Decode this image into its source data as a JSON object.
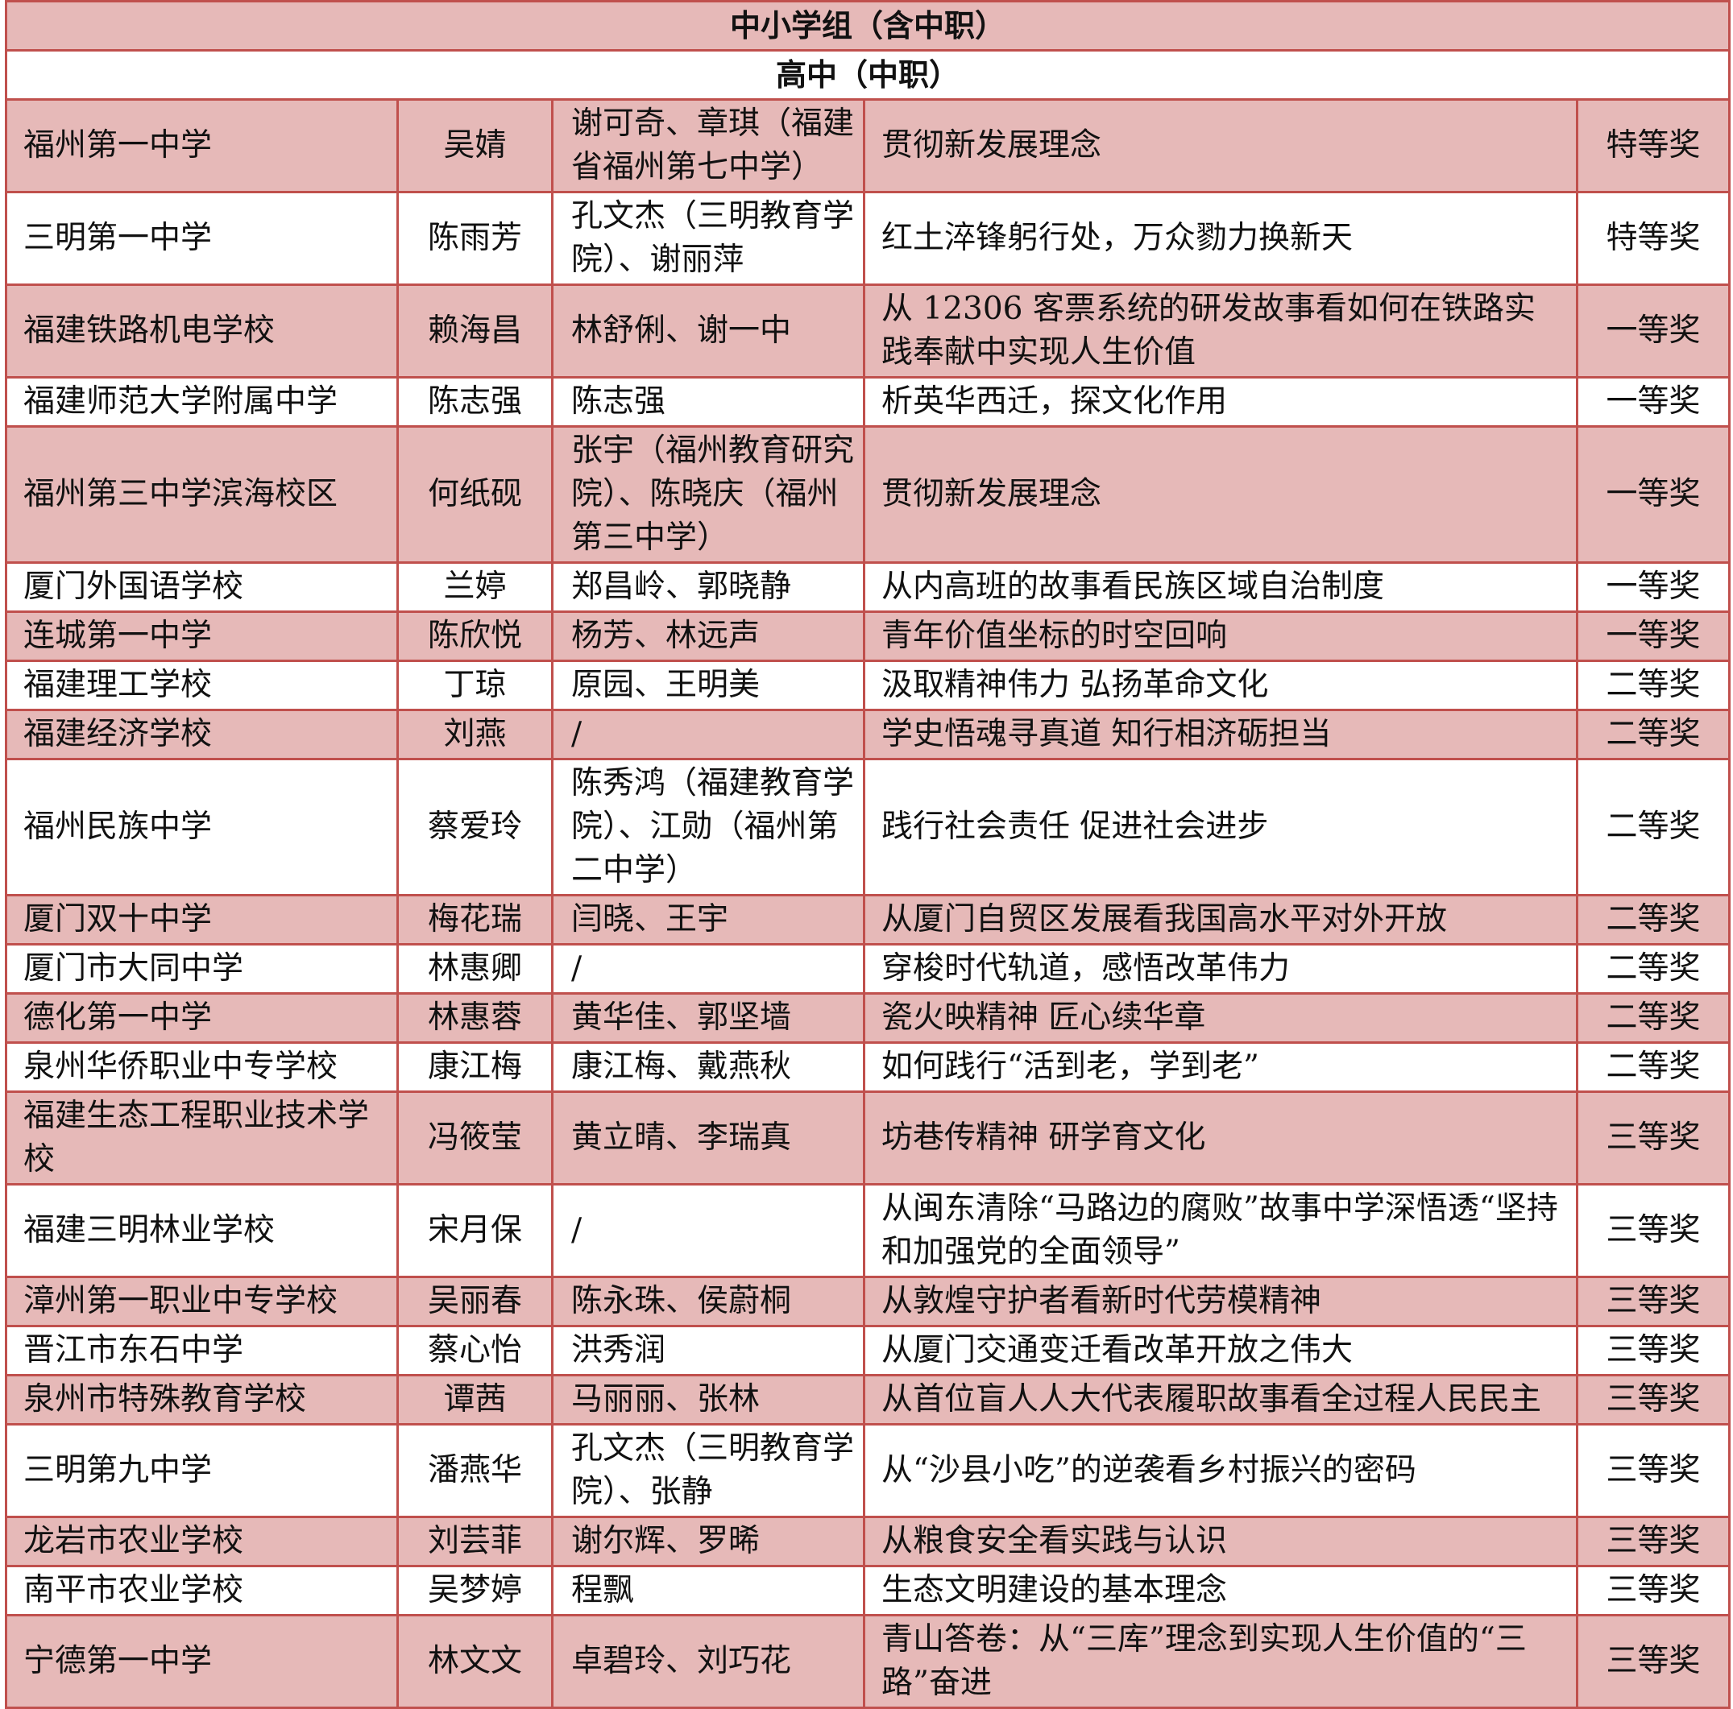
{
  "title": "中小学组（含中职）",
  "subtitle": "高中（中职）",
  "colors": {
    "fill": "#e6b9b8",
    "border": "#c0504d"
  },
  "rows": [
    [
      "福州第一中学",
      "吴婧",
      "谢可奇、章琪（福建省福州第七中学）",
      "贯彻新发展理念",
      "特等奖"
    ],
    [
      "三明第一中学",
      "陈雨芳",
      "孔文杰（三明教育学院）、谢丽萍",
      "红土淬锋躬行处，万众勠力换新天",
      "特等奖"
    ],
    [
      "福建铁路机电学校",
      "赖海昌",
      "林舒俐、谢一中",
      "从 12306 客票系统的研发故事看如何在铁路实践奉献中实现人生价值",
      "一等奖"
    ],
    [
      "福建师范大学附属中学",
      "陈志强",
      "陈志强",
      "析英华西迁，探文化作用",
      "一等奖"
    ],
    [
      "福州第三中学滨海校区",
      "何纸砚",
      "张宇（福州教育研究院）、陈晓庆（福州第三中学）",
      "贯彻新发展理念",
      "一等奖"
    ],
    [
      "厦门外国语学校",
      "兰婷",
      "郑昌岭、郭晓静",
      "从内高班的故事看民族区域自治制度",
      "一等奖"
    ],
    [
      "连城第一中学",
      "陈欣悦",
      "杨芳、林远声",
      "青年价值坐标的时空回响",
      "一等奖"
    ],
    [
      "福建理工学校",
      "丁琼",
      "原园、王明美",
      "汲取精神伟力 弘扬革命文化",
      "二等奖"
    ],
    [
      "福建经济学校",
      "刘燕",
      "/",
      "学史悟魂寻真道 知行相济砺担当",
      "二等奖"
    ],
    [
      "福州民族中学",
      "蔡爱玲",
      "陈秀鸿（福建教育学院）、江勋（福州第二中学）",
      "践行社会责任 促进社会进步",
      "二等奖"
    ],
    [
      "厦门双十中学",
      "梅花瑞",
      "闫晓、王宇",
      "从厦门自贸区发展看我国高水平对外开放",
      "二等奖"
    ],
    [
      "厦门市大同中学",
      "林惠卿",
      "/",
      "穿梭时代轨道，感悟改革伟力",
      "二等奖"
    ],
    [
      "德化第一中学",
      "林惠蓉",
      "黄华佳、郭坚墙",
      "瓷火映精神 匠心续华章",
      "二等奖"
    ],
    [
      "泉州华侨职业中专学校",
      "康江梅",
      "康江梅、戴燕秋",
      "如何践行“活到老，学到老”",
      "二等奖"
    ],
    [
      "福建生态工程职业技术学校",
      "冯筱莹",
      "黄立晴、李瑞真",
      "坊巷传精神 研学育文化",
      "三等奖"
    ],
    [
      "福建三明林业学校",
      "宋月保",
      "/",
      "从闽东清除“马路边的腐败”故事中学深悟透“坚持和加强党的全面领导”",
      "三等奖"
    ],
    [
      "漳州第一职业中专学校",
      "吴丽春",
      "陈永珠、侯蔚桐",
      "从敦煌守护者看新时代劳模精神",
      "三等奖"
    ],
    [
      "晋江市东石中学",
      "蔡心怡",
      "洪秀润",
      "从厦门交通变迁看改革开放之伟大",
      "三等奖"
    ],
    [
      "泉州市特殊教育学校",
      "谭茜",
      "马丽丽、张林",
      "从首位盲人人大代表履职故事看全过程人民民主",
      "三等奖"
    ],
    [
      "三明第九中学",
      "潘燕华",
      "孔文杰（三明教育学院）、张静",
      "从“沙县小吃”的逆袭看乡村振兴的密码",
      "三等奖"
    ],
    [
      "龙岩市农业学校",
      "刘芸菲",
      "谢尔辉、罗晞",
      "从粮食安全看实践与认识",
      "三等奖"
    ],
    [
      "南平市农业学校",
      "吴梦婷",
      "程飘",
      "生态文明建设的基本理念",
      "三等奖"
    ],
    [
      "宁德第一中学",
      "林文文",
      "卓碧玲、刘巧花",
      "青山答卷：从“三库”理念到实现人生价值的“三路”奋进",
      "三等奖"
    ]
  ]
}
